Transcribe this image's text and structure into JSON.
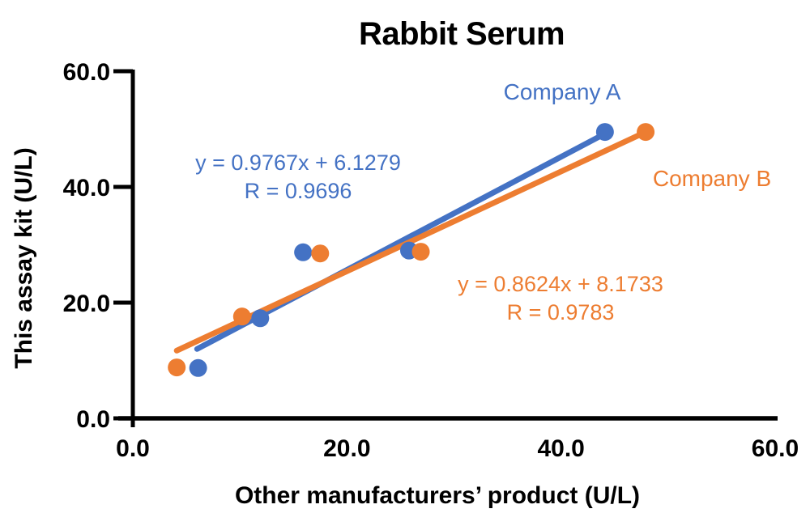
{
  "chart_data": {
    "type": "scatter",
    "title": "Rabbit Serum",
    "xlabel": "Other manufacturers’ product (U/L)",
    "ylabel": "This assay kit (U/L)",
    "xlim": [
      0.0,
      60.0
    ],
    "ylim": [
      0.0,
      60.0
    ],
    "grid": false,
    "legend_position": "annotations-near-points",
    "axis_color": "#000000",
    "x_ticks": [
      {
        "value": 0.0,
        "label": "0.0"
      },
      {
        "value": 20.0,
        "label": "20.0"
      },
      {
        "value": 40.0,
        "label": "40.0"
      },
      {
        "value": 60.0,
        "label": "60.0"
      }
    ],
    "y_ticks": [
      {
        "value": 0.0,
        "label": "0.0"
      },
      {
        "value": 20.0,
        "label": "20.0"
      },
      {
        "value": 40.0,
        "label": "40.0"
      },
      {
        "value": 60.0,
        "label": "60.0"
      }
    ],
    "series": [
      {
        "name": "Company A",
        "color": "#4472C4",
        "marker": "circle",
        "points": [
          [
            6.1,
            8.7
          ],
          [
            11.9,
            17.3
          ],
          [
            15.9,
            28.7
          ],
          [
            25.8,
            29.0
          ],
          [
            44.1,
            49.5
          ]
        ],
        "trendline": {
          "slope": 0.9767,
          "intercept": 6.1279,
          "x_start": 6.0,
          "x_end": 44.1
        },
        "equation_label": "y = 0.9767x + 6.1279",
        "r_label": "R = 0.9696"
      },
      {
        "name": "Company B",
        "color": "#ED7D31",
        "marker": "circle",
        "points": [
          [
            4.1,
            8.8
          ],
          [
            10.2,
            17.6
          ],
          [
            17.5,
            28.5
          ],
          [
            26.9,
            28.8
          ],
          [
            47.9,
            49.5
          ]
        ],
        "trendline": {
          "slope": 0.8624,
          "intercept": 8.1733,
          "x_start": 4.1,
          "x_end": 47.9
        },
        "equation_label": "y = 0.8624x + 8.1733",
        "r_label": "R = 0.9783"
      }
    ]
  }
}
